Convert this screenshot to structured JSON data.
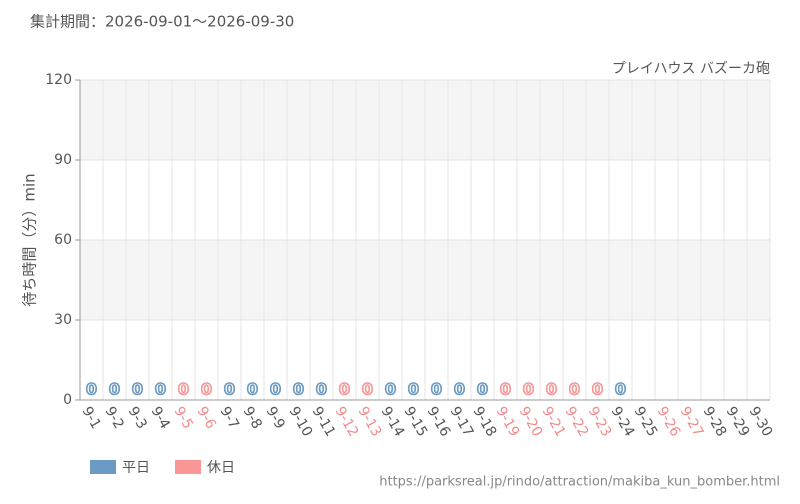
{
  "chart_data": {
    "type": "bar",
    "title": "集計期間：2026-09-01～2026-09-30",
    "subtitle": "プレイハウス バズーカ砲",
    "y_label": "待ち時間（分）min",
    "source": "https://parksreal.jp/rindo/attraction/makiba_kun_bomber.html",
    "categories": [
      "9-1",
      "9-2",
      "9-3",
      "9-4",
      "9-5",
      "9-6",
      "9-7",
      "9-8",
      "9-9",
      "9-10",
      "9-11",
      "9-12",
      "9-13",
      "9-14",
      "9-15",
      "9-16",
      "9-17",
      "9-18",
      "9-19",
      "9-20",
      "9-21",
      "9-22",
      "9-23",
      "9-24",
      "9-25",
      "9-26",
      "9-27",
      "9-28",
      "9-29",
      "9-30"
    ],
    "category_colors": [
      "#555",
      "#555",
      "#555",
      "#555",
      "#f58a8a",
      "#f58a8a",
      "#555",
      "#555",
      "#555",
      "#555",
      "#555",
      "#f58a8a",
      "#f58a8a",
      "#555",
      "#555",
      "#555",
      "#555",
      "#555",
      "#f58a8a",
      "#f58a8a",
      "#f58a8a",
      "#f58a8a",
      "#f58a8a",
      "#555",
      "#555",
      "#f58a8a",
      "#f58a8a",
      "#555",
      "#555",
      "#555"
    ],
    "series": [
      {
        "name": "平日",
        "color": "#6b9bc3",
        "values": [
          0,
          0,
          0,
          0,
          null,
          null,
          0,
          0,
          0,
          0,
          0,
          null,
          null,
          0,
          0,
          0,
          0,
          0,
          null,
          null,
          null,
          null,
          null,
          0,
          null,
          null,
          null,
          null,
          null,
          null
        ]
      },
      {
        "name": "休日",
        "color": "#f99696",
        "values": [
          null,
          null,
          null,
          null,
          0,
          0,
          null,
          null,
          null,
          null,
          null,
          0,
          0,
          null,
          null,
          null,
          null,
          null,
          0,
          0,
          0,
          0,
          0,
          null,
          null,
          null,
          null,
          null,
          null,
          null
        ]
      }
    ],
    "ylim": [
      0,
      120
    ],
    "yticks": [
      0,
      30,
      60,
      90,
      120
    ],
    "grid": true
  }
}
